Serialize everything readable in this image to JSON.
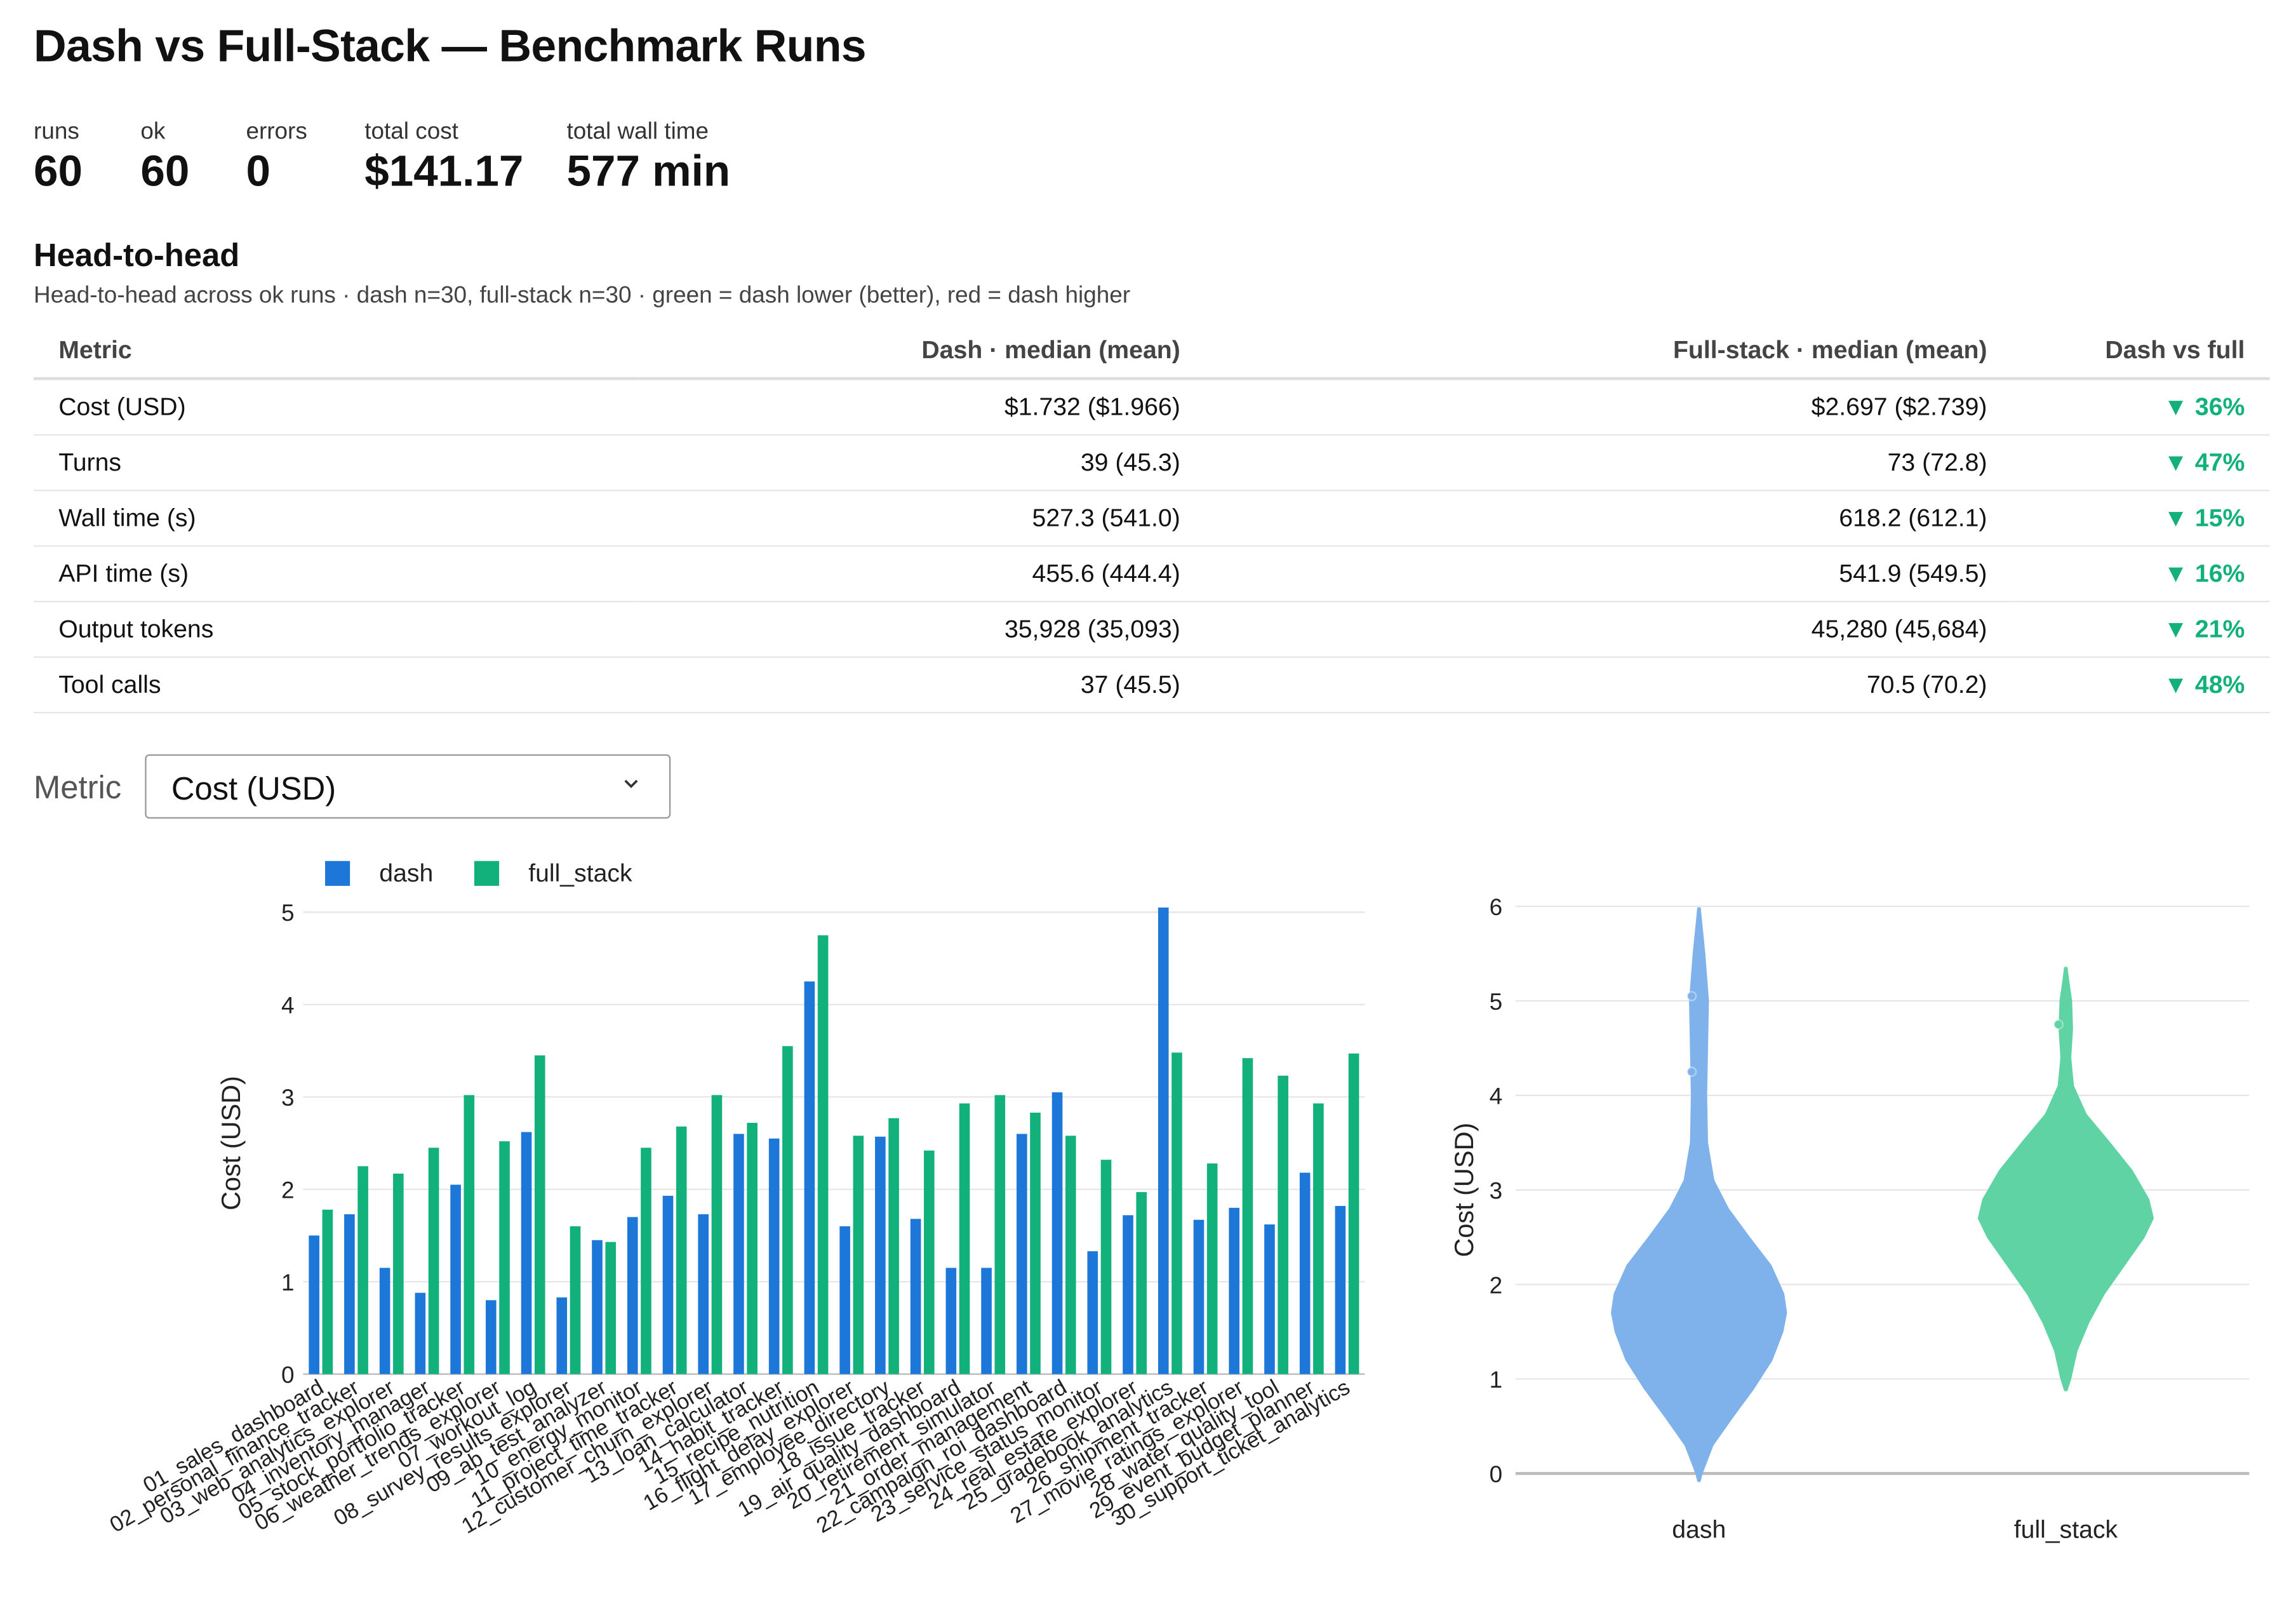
{
  "title": "Dash vs Full-Stack — Benchmark Runs",
  "stats": [
    {
      "label": "runs",
      "value": "60"
    },
    {
      "label": "ok",
      "value": "60"
    },
    {
      "label": "errors",
      "value": "0"
    },
    {
      "label": "total cost",
      "value": "$141.17"
    },
    {
      "label": "total wall time",
      "value": "577 min"
    }
  ],
  "head_to_head": {
    "heading": "Head-to-head",
    "note": "Head-to-head across ok runs · dash n=30, full-stack n=30 · green = dash lower (better), red = dash higher",
    "columns": [
      "Metric",
      "Dash · median (mean)",
      "Full-stack · median (mean)",
      "Dash vs full"
    ],
    "rows": [
      {
        "metric": "Cost (USD)",
        "dash": "$1.732 ($1.966)",
        "full": "$2.697 ($2.739)",
        "delta": "▼ 36%"
      },
      {
        "metric": "Turns",
        "dash": "39 (45.3)",
        "full": "73 (72.8)",
        "delta": "▼ 47%"
      },
      {
        "metric": "Wall time (s)",
        "dash": "527.3 (541.0)",
        "full": "618.2 (612.1)",
        "delta": "▼ 15%"
      },
      {
        "metric": "API time (s)",
        "dash": "455.6 (444.4)",
        "full": "541.9 (549.5)",
        "delta": "▼ 16%"
      },
      {
        "metric": "Output tokens",
        "dash": "35,928 (35,093)",
        "full": "45,280 (45,684)",
        "delta": "▼ 21%"
      },
      {
        "metric": "Tool calls",
        "dash": "37 (45.5)",
        "full": "70.5 (70.2)",
        "delta": "▼ 48%"
      }
    ],
    "better_color": "#12b07a"
  },
  "metric_select": {
    "label": "Metric",
    "value": "Cost (USD)",
    "icon": "chevron-down-icon"
  },
  "chart_data": [
    {
      "type": "bar",
      "ylabel": "Cost (USD)",
      "ylim": [
        0,
        5
      ],
      "yticks": [
        0,
        1,
        2,
        3,
        4,
        5
      ],
      "grid": true,
      "legend": "top",
      "categories": [
        "01_sales_dashboard",
        "02_personal_finance_tracker",
        "03_web_analytics_explorer",
        "04_inventory_manager",
        "05_stock_portfolio_tracker",
        "06_weather_trends_explorer",
        "07_workout_log",
        "08_survey_results_explorer",
        "09_ab_test_analyzer",
        "10_energy_monitor",
        "11_project_time_tracker",
        "12_customer_churn_explorer",
        "13_loan_calculator",
        "14_habit_tracker",
        "15_recipe_nutrition",
        "16_flight_delay_explorer",
        "17_employee_directory",
        "18_issue_tracker",
        "19_air_quality_dashboard",
        "20_retirement_simulator",
        "21_order_management",
        "22_campaign_roi_dashboard",
        "23_service_status_monitor",
        "24_real_estate_explorer",
        "25_gradebook_analytics",
        "26_shipment_tracker",
        "27_movie_ratings_explorer",
        "28_water_quality_tool",
        "29_event_budget_planner",
        "30_support_ticket_analytics"
      ],
      "series": [
        {
          "name": "dash",
          "color": "#1c77d9",
          "values": [
            1.5,
            1.73,
            1.15,
            0.88,
            2.05,
            0.8,
            2.62,
            0.83,
            1.45,
            1.7,
            1.93,
            1.73,
            2.6,
            2.55,
            4.25,
            1.6,
            2.57,
            1.68,
            1.15,
            1.15,
            2.6,
            3.05,
            1.33,
            1.72,
            5.05,
            1.67,
            1.8,
            1.62,
            2.18,
            1.82
          ]
        },
        {
          "name": "full_stack",
          "color": "#12b07a",
          "values": [
            1.78,
            2.25,
            2.17,
            2.45,
            3.02,
            2.52,
            3.45,
            1.6,
            1.43,
            2.45,
            2.68,
            3.02,
            2.72,
            3.55,
            4.75,
            2.58,
            2.77,
            2.42,
            2.93,
            3.02,
            2.83,
            2.58,
            2.32,
            1.97,
            3.48,
            2.28,
            3.42,
            3.23,
            2.93,
            3.47
          ]
        }
      ]
    },
    {
      "type": "violin",
      "ylabel": "Cost (USD)",
      "ylim": [
        0,
        6
      ],
      "yticks": [
        0,
        1,
        2,
        3,
        4,
        5,
        6
      ],
      "grid": true,
      "categories": [
        "dash",
        "full_stack"
      ],
      "series": [
        {
          "name": "dash",
          "color": "#7fb2ea",
          "range": [
            -0.08,
            5.98
          ],
          "profile": [
            [
              -0.08,
              0.01
            ],
            [
              0,
              0.03
            ],
            [
              0.3,
              0.15
            ],
            [
              0.6,
              0.37
            ],
            [
              0.9,
              0.6
            ],
            [
              1.2,
              0.8
            ],
            [
              1.5,
              0.92
            ],
            [
              1.7,
              0.96
            ],
            [
              1.9,
              0.93
            ],
            [
              2.2,
              0.79
            ],
            [
              2.5,
              0.55
            ],
            [
              2.8,
              0.32
            ],
            [
              3.1,
              0.16
            ],
            [
              3.5,
              0.09
            ],
            [
              4.0,
              0.08
            ],
            [
              4.5,
              0.09
            ],
            [
              5.0,
              0.1
            ],
            [
              5.5,
              0.06
            ],
            [
              5.98,
              0.01
            ]
          ]
        },
        {
          "name": "full_stack",
          "color": "#5fd3a3",
          "range": [
            0.88,
            5.35
          ],
          "profile": [
            [
              0.88,
              0.01
            ],
            [
              1.0,
              0.05
            ],
            [
              1.3,
              0.12
            ],
            [
              1.6,
              0.25
            ],
            [
              1.9,
              0.42
            ],
            [
              2.2,
              0.64
            ],
            [
              2.5,
              0.86
            ],
            [
              2.7,
              0.96
            ],
            [
              2.9,
              0.91
            ],
            [
              3.2,
              0.73
            ],
            [
              3.5,
              0.48
            ],
            [
              3.8,
              0.22
            ],
            [
              4.1,
              0.08
            ],
            [
              4.4,
              0.05
            ],
            [
              4.7,
              0.07
            ],
            [
              5.0,
              0.06
            ],
            [
              5.2,
              0.03
            ],
            [
              5.35,
              0.01
            ]
          ]
        }
      ],
      "points": [
        {
          "series": "dash",
          "y": 5.05
        },
        {
          "series": "dash",
          "y": 4.25
        },
        {
          "series": "full_stack",
          "y": 4.75
        }
      ]
    }
  ]
}
